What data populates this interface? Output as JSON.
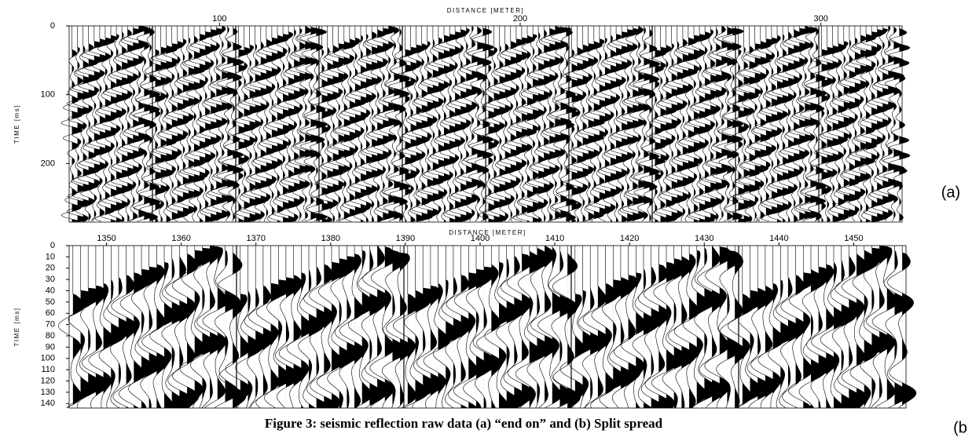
{
  "figure": {
    "panels": [
      {
        "label": "(a)",
        "x_label": "DISTANCE [METER]",
        "y_label": "TIME [ms]",
        "xlim": [
          50,
          327
        ],
        "ylim": [
          0,
          285
        ],
        "xticks": [
          100,
          200,
          300
        ],
        "yticks": [
          0,
          100,
          200
        ]
      },
      {
        "label": "(b",
        "x_label": "DISTANCE [METER]",
        "y_label": "TIME [ms]",
        "xlim": [
          1345,
          1457
        ],
        "ylim": [
          0,
          144
        ],
        "xticks": [
          1350,
          1360,
          1370,
          1380,
          1390,
          1400,
          1410,
          1420,
          1430,
          1440,
          1450
        ],
        "yticks": [
          0,
          10,
          20,
          30,
          40,
          50,
          60,
          70,
          80,
          90,
          100,
          110,
          120,
          130,
          140
        ]
      }
    ],
    "caption": "Figure 3: seismic reflection raw data (a) “end on” and (b) Split spread"
  }
}
